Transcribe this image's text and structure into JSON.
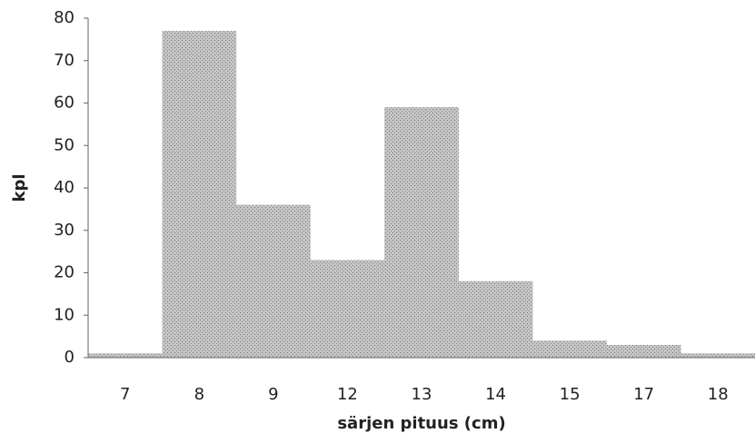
{
  "chart_data": {
    "type": "bar",
    "x_label": "särjen pituus (cm)",
    "y_label": "kpl",
    "categories": [
      "7",
      "8",
      "9",
      "12",
      "13",
      "14",
      "15",
      "17",
      "18"
    ],
    "values": [
      1,
      77,
      36,
      23,
      59,
      18,
      4,
      3,
      1
    ],
    "color": "#b4b4b4",
    "ylim": [
      0,
      80
    ],
    "yticks": [
      0,
      10,
      20,
      30,
      40,
      50,
      60,
      70,
      80
    ],
    "grid": false
  }
}
